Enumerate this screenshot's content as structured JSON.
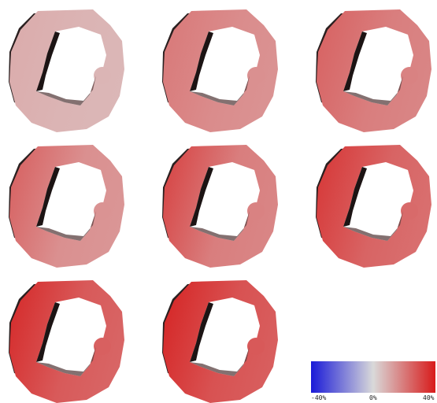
{
  "panels": [
    {
      "tint": 0.18,
      "left_tint": 0.22
    },
    {
      "tint": 0.4,
      "left_tint": 0.5
    },
    {
      "tint": 0.48,
      "left_tint": 0.62
    },
    {
      "tint": 0.38,
      "left_tint": 0.62
    },
    {
      "tint": 0.48,
      "left_tint": 0.78
    },
    {
      "tint": 0.62,
      "left_tint": 0.85
    },
    {
      "tint": 0.68,
      "left_tint": 0.92
    },
    {
      "tint": 0.72,
      "left_tint": 0.95
    }
  ],
  "colorbar": {
    "min_label": "-40%",
    "mid_label": "0%",
    "max_label": "40%",
    "colors": [
      "#1a1ad8",
      "#d9d9d9",
      "#d81a1a"
    ]
  }
}
